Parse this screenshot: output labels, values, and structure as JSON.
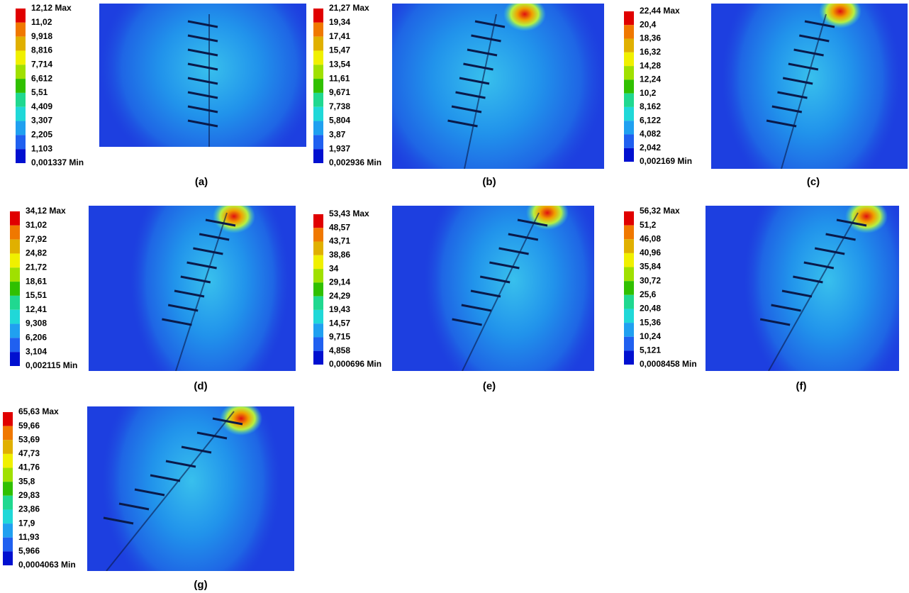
{
  "panels": [
    {
      "caption": "(a)",
      "legend": [
        "12,12 Max",
        "11,02",
        "9,918",
        "8,816",
        "7,714",
        "6,612",
        "5,51",
        "4,409",
        "3,307",
        "2,205",
        "1,103",
        "0,001337 Min"
      ]
    },
    {
      "caption": "(b)",
      "legend": [
        "21,27 Max",
        "19,34",
        "17,41",
        "15,47",
        "13,54",
        "11,61",
        "9,671",
        "7,738",
        "5,804",
        "3,87",
        "1,937",
        "0,002936 Min"
      ]
    },
    {
      "caption": "(c)",
      "legend": [
        "22,44 Max",
        "20,4",
        "18,36",
        "16,32",
        "14,28",
        "12,24",
        "10,2",
        "8,162",
        "6,122",
        "4,082",
        "2,042",
        "0,002169 Min"
      ]
    },
    {
      "caption": "(d)",
      "legend": [
        "34,12 Max",
        "31,02",
        "27,92",
        "24,82",
        "21,72",
        "18,61",
        "15,51",
        "12,41",
        "9,308",
        "6,206",
        "3,104",
        "0,002115 Min"
      ]
    },
    {
      "caption": "(e)",
      "legend": [
        "53,43 Max",
        "48,57",
        "43,71",
        "38,86",
        "34",
        "29,14",
        "24,29",
        "19,43",
        "14,57",
        "9,715",
        "4,858",
        "0,000696 Min"
      ]
    },
    {
      "caption": "(f)",
      "legend": [
        "56,32 Max",
        "51,2",
        "46,08",
        "40,96",
        "35,84",
        "30,72",
        "25,6",
        "20,48",
        "15,36",
        "10,24",
        "5,121",
        "0,0008458 Min"
      ]
    },
    {
      "caption": "(g)",
      "legend": [
        "65,63 Max",
        "59,66",
        "53,69",
        "47,73",
        "41,76",
        "35,8",
        "29,83",
        "23,86",
        "17,9",
        "11,93",
        "5,966",
        "0,0004063 Min"
      ]
    }
  ]
}
